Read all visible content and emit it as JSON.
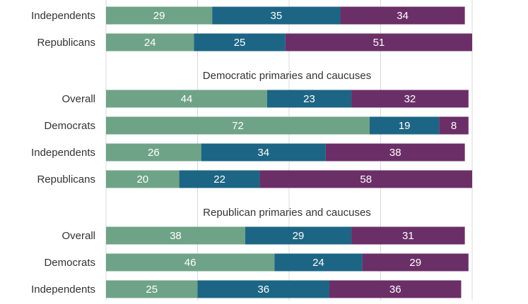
{
  "colors": {
    "segment_1": "#6fa387",
    "segment_2": "#1d6584",
    "segment_3": "#6b2f68",
    "gridline": "#d9d9d9",
    "label_text": "#333333",
    "value_text": "#ffffff"
  },
  "chart_data": {
    "type": "bar",
    "orientation": "horizontal",
    "stacked": true,
    "grid": true,
    "xlim": [
      0,
      100
    ],
    "groups": [
      {
        "title": "",
        "rows": [
          {
            "label": "Independents",
            "values": [
              29,
              35,
              34
            ]
          },
          {
            "label": "Republicans",
            "values": [
              24,
              25,
              51
            ]
          }
        ]
      },
      {
        "title": "Democratic primaries and caucuses",
        "rows": [
          {
            "label": "Overall",
            "values": [
              44,
              23,
              32
            ]
          },
          {
            "label": "Democrats",
            "values": [
              72,
              19,
              8
            ]
          },
          {
            "label": "Independents",
            "values": [
              26,
              34,
              38
            ]
          },
          {
            "label": "Republicans",
            "values": [
              20,
              22,
              58
            ]
          }
        ]
      },
      {
        "title": "Republican primaries and caucuses",
        "rows": [
          {
            "label": "Overall",
            "values": [
              38,
              29,
              31
            ]
          },
          {
            "label": "Democrats",
            "values": [
              46,
              24,
              29
            ]
          },
          {
            "label": "Independents",
            "values": [
              25,
              36,
              36
            ]
          }
        ]
      }
    ]
  }
}
